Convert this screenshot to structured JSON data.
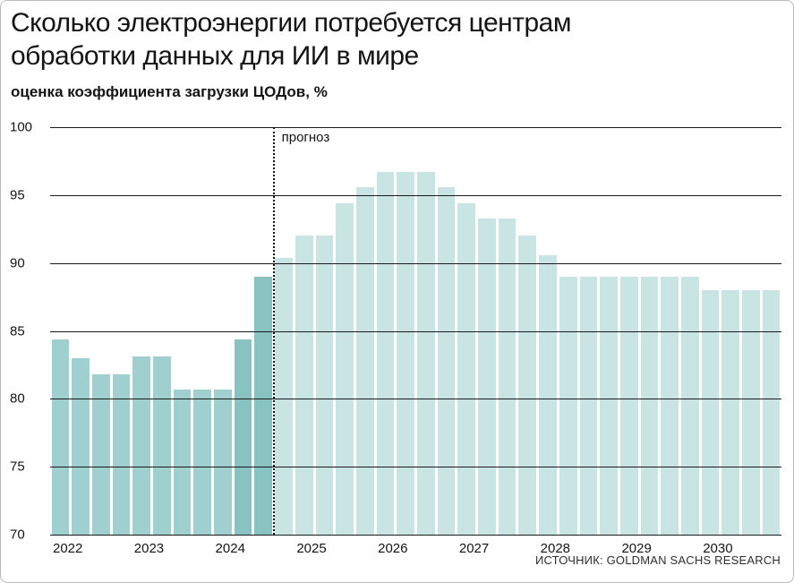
{
  "header": {
    "title_line1": "Сколько электроэнергии потребуется центрам",
    "title_line2": "обработки данных для ИИ в мире",
    "subtitle": "оценка коэффициента загрузки ЦОДов, %"
  },
  "footer": {
    "source": "ИСТОЧНИК: GOLDMAN SACHS RESEARCH"
  },
  "colors": {
    "historical": "#9fcfce",
    "historical_dark": "#88c3c2",
    "forecast": "#c9e5e3",
    "gridline": "#1a1a1a",
    "text": "#141414"
  },
  "chart_data": {
    "type": "bar",
    "title": "Сколько электроэнергии потребуется центрам обработки данных для ИИ в мире",
    "subtitle": "оценка коэффициента загрузки ЦОДов, %",
    "unit": "%",
    "ylim": [
      70,
      100
    ],
    "yticks": [
      100,
      95,
      90,
      85,
      80,
      75,
      70
    ],
    "grid": true,
    "bars_per_year": 4,
    "year_labels": [
      "2022",
      "2023",
      "2024",
      "2025",
      "2026",
      "2027",
      "2028",
      "2029",
      "2030"
    ],
    "forecast_start_index": 11,
    "forecast_label": "прогноз",
    "dark_historical_indices": [
      9,
      10
    ],
    "values": [
      84.4,
      83.0,
      81.8,
      81.8,
      83.1,
      83.1,
      80.7,
      80.7,
      80.7,
      84.4,
      89.0,
      90.4,
      92.0,
      92.0,
      94.4,
      95.6,
      96.7,
      96.7,
      96.7,
      95.6,
      94.4,
      93.3,
      93.3,
      92.0,
      90.6,
      89.0,
      89.0,
      89.0,
      89.0,
      89.0,
      89.0,
      89.0,
      88.0,
      88.0,
      88.0,
      88.0
    ],
    "source": "ИСТОЧНИК: GOLDMAN SACHS RESEARCH"
  }
}
